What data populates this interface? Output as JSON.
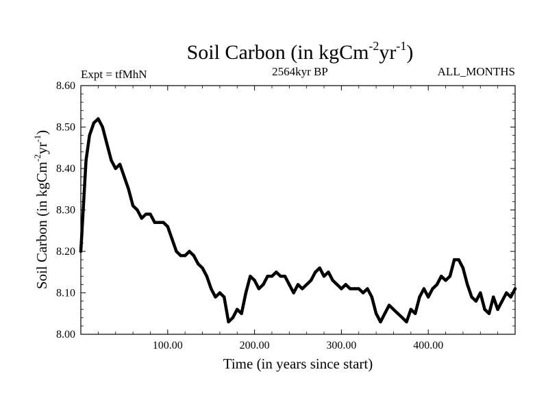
{
  "chart_data": {
    "type": "line",
    "title": {
      "base": "Soil Carbon (in kgCm",
      "sup1": "-2",
      "mid": "yr",
      "sup2": "-1",
      "end": ")"
    },
    "left_header": "Expt = tfMhN",
    "center_header": "2564kyr BP",
    "right_header": "ALL_MONTHS",
    "xlabel": "Time (in years since start)",
    "ylabel": {
      "base": "Soil Carbon (in kgCm",
      "sup1": "-2",
      "mid": "yr",
      "sup2": "-1",
      "end": ")"
    },
    "xlim": [
      0,
      500
    ],
    "ylim": [
      8.0,
      8.6
    ],
    "xticks": [
      100,
      200,
      300,
      400
    ],
    "xtick_labels": [
      "100.00",
      "200.00",
      "300.00",
      "400.00"
    ],
    "yticks": [
      8.0,
      8.1,
      8.2,
      8.3,
      8.4,
      8.5,
      8.6
    ],
    "ytick_labels": [
      "8.00",
      "8.10",
      "8.20",
      "8.30",
      "8.40",
      "8.50",
      "8.60"
    ],
    "line_color": "#000000",
    "series": [
      {
        "name": "Soil Carbon",
        "x": [
          0,
          3,
          6,
          10,
          15,
          20,
          25,
          30,
          35,
          40,
          45,
          50,
          55,
          60,
          65,
          70,
          75,
          80,
          85,
          90,
          95,
          100,
          105,
          110,
          115,
          120,
          125,
          130,
          135,
          140,
          145,
          150,
          155,
          160,
          165,
          170,
          175,
          180,
          185,
          190,
          195,
          200,
          205,
          210,
          215,
          220,
          225,
          230,
          235,
          240,
          245,
          250,
          255,
          260,
          265,
          270,
          275,
          280,
          285,
          290,
          295,
          300,
          305,
          310,
          315,
          320,
          325,
          330,
          335,
          340,
          345,
          350,
          355,
          360,
          365,
          370,
          375,
          380,
          385,
          390,
          395,
          400,
          405,
          410,
          415,
          420,
          425,
          430,
          435,
          440,
          445,
          450,
          455,
          460,
          465,
          470,
          475,
          480,
          485,
          490,
          495,
          500
        ],
        "y": [
          8.2,
          8.31,
          8.42,
          8.48,
          8.51,
          8.52,
          8.5,
          8.46,
          8.42,
          8.4,
          8.41,
          8.38,
          8.35,
          8.31,
          8.3,
          8.28,
          8.29,
          8.29,
          8.27,
          8.27,
          8.27,
          8.26,
          8.23,
          8.2,
          8.19,
          8.19,
          8.2,
          8.19,
          8.17,
          8.16,
          8.14,
          8.11,
          8.09,
          8.1,
          8.09,
          8.03,
          8.04,
          8.06,
          8.05,
          8.1,
          8.14,
          8.13,
          8.11,
          8.12,
          8.14,
          8.14,
          8.15,
          8.14,
          8.14,
          8.12,
          8.1,
          8.12,
          8.11,
          8.12,
          8.13,
          8.15,
          8.16,
          8.14,
          8.15,
          8.13,
          8.12,
          8.11,
          8.12,
          8.11,
          8.11,
          8.11,
          8.1,
          8.11,
          8.09,
          8.05,
          8.03,
          8.05,
          8.07,
          8.06,
          8.05,
          8.04,
          8.03,
          8.06,
          8.05,
          8.09,
          8.11,
          8.09,
          8.11,
          8.12,
          8.14,
          8.13,
          8.14,
          8.18,
          8.18,
          8.16,
          8.12,
          8.09,
          8.08,
          8.1,
          8.06,
          8.05,
          8.09,
          8.06,
          8.08,
          8.1,
          8.09,
          8.11
        ]
      }
    ]
  }
}
